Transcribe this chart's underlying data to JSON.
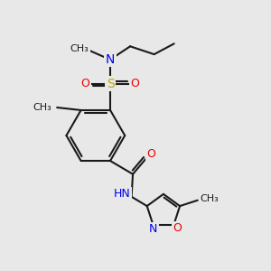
{
  "bg_color": "#e8e8e8",
  "bond_color": "#1a1a1a",
  "bond_width": 1.5,
  "colors": {
    "C": "#1a1a1a",
    "N": "#0000ee",
    "O": "#ee0000",
    "S": "#bbaa00",
    "H": "#558888"
  },
  "font_size": 9,
  "fig_size": [
    3.0,
    3.0
  ],
  "dpi": 100,
  "xlim": [
    0,
    10
  ],
  "ylim": [
    0,
    10
  ]
}
